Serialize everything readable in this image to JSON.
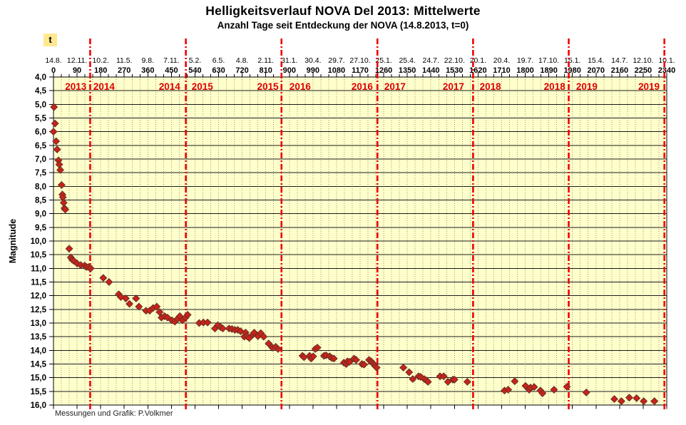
{
  "header": {
    "title": "Helligkeitsverlauf NOVA Del 2013: Mittelwerte",
    "subtitle": "Anzahl Tage seit Entdeckung der NOVA (14.8.2013, t=0)",
    "t_label": "t"
  },
  "footer": {
    "credit": "Messungen und Grafik: P.Volkmer"
  },
  "colors": {
    "page_bg": "#ffffff",
    "plot_bg": "#ffffcc",
    "h_grid": "#1c1c1c",
    "v_grid": "#9b9b73",
    "border": "#000000",
    "point_fill": "#cc2118",
    "point_stroke": "#6e3125",
    "year_line": "#f00000",
    "year_text": "#e00000",
    "t_box_bg": "#ffe98f",
    "axis_text": "#000000",
    "footer_text": "#1f1f1f"
  },
  "chart_data": {
    "type": "scatter",
    "title": "Helligkeitsverlauf NOVA Del 2013: Mittelwerte",
    "xlabel": "Anzahl Tage seit Entdeckung der NOVA (14.8.2013, t=0)",
    "ylabel": "Magnitude",
    "legend": "none",
    "grid": "on",
    "x_axis": {
      "min": 0,
      "max": 2340,
      "tick_step": 90,
      "minor_step": 30,
      "unit_label": "t",
      "tick_days": [
        0,
        90,
        180,
        270,
        360,
        450,
        540,
        630,
        720,
        810,
        900,
        990,
        1080,
        1170,
        1260,
        1350,
        1440,
        1530,
        1620,
        1710,
        1800,
        1890,
        1980,
        2070,
        2160,
        2250,
        2340
      ],
      "tick_dates": [
        "14.8.",
        "12.11.",
        "10.2.",
        "11.5.",
        "9.8.",
        "7.11.",
        "5.2.",
        "6.5.",
        "4.8.",
        "2.11.",
        "31.1.",
        "30.4.",
        "29.7.",
        "27.10.",
        "25.1.",
        "25.4.",
        "24.7.",
        "22.10.",
        "20.1.",
        "20.4.",
        "19.7.",
        "17.10.",
        "15.1.",
        "15.4.",
        "14.7.",
        "12.10.",
        "10.1."
      ]
    },
    "y_axis": {
      "min": 4.0,
      "max": 16.0,
      "step": 0.5,
      "inverted": true,
      "tick_labels": [
        "4,0",
        "4,5",
        "5,0",
        "5,5",
        "6,0",
        "6,5",
        "7,0",
        "7,5",
        "8,0",
        "8,5",
        "9,0",
        "9,5",
        "10,0",
        "10,5",
        "11,0",
        "11,5",
        "12,0",
        "12,5",
        "13,0",
        "13,5",
        "14,0",
        "14,5",
        "15,0",
        "15,5",
        "16,0"
      ]
    },
    "year_lines": {
      "days": [
        140,
        505,
        870,
        1236,
        1601,
        1966,
        2331
      ]
    },
    "year_labels": [
      {
        "text": "2013",
        "day": 85
      },
      {
        "text": "2014",
        "day": 193
      },
      {
        "text": "2014",
        "day": 443
      },
      {
        "text": "2015",
        "day": 568
      },
      {
        "text": "2015",
        "day": 818
      },
      {
        "text": "2016",
        "day": 941
      },
      {
        "text": "2016",
        "day": 1178
      },
      {
        "text": "2017",
        "day": 1303
      },
      {
        "text": "2017",
        "day": 1526
      },
      {
        "text": "2018",
        "day": 1667
      },
      {
        "text": "2018",
        "day": 1912
      },
      {
        "text": "2019",
        "day": 2035
      },
      {
        "text": "2019",
        "day": 2272
      }
    ],
    "points": [
      [
        0,
        6.0
      ],
      [
        2,
        5.1
      ],
      [
        6,
        5.7
      ],
      [
        10,
        6.35
      ],
      [
        14,
        6.65
      ],
      [
        19,
        7.05
      ],
      [
        22,
        7.2
      ],
      [
        26,
        7.4
      ],
      [
        31,
        7.95
      ],
      [
        34,
        8.3
      ],
      [
        36,
        8.4
      ],
      [
        39,
        8.6
      ],
      [
        42,
        8.8
      ],
      [
        45,
        8.85
      ],
      [
        60,
        10.28
      ],
      [
        66,
        10.6
      ],
      [
        71,
        10.68
      ],
      [
        77,
        10.72
      ],
      [
        90,
        10.82
      ],
      [
        104,
        10.88
      ],
      [
        119,
        10.9
      ],
      [
        126,
        10.95
      ],
      [
        134,
        10.95
      ],
      [
        142,
        11.0
      ],
      [
        190,
        11.35
      ],
      [
        212,
        11.5
      ],
      [
        249,
        11.95
      ],
      [
        257,
        12.05
      ],
      [
        276,
        12.1
      ],
      [
        290,
        12.3
      ],
      [
        315,
        12.1
      ],
      [
        326,
        12.4
      ],
      [
        353,
        12.55
      ],
      [
        367,
        12.55
      ],
      [
        380,
        12.45
      ],
      [
        394,
        12.4
      ],
      [
        405,
        12.6
      ],
      [
        412,
        12.8
      ],
      [
        424,
        12.75
      ],
      [
        435,
        12.8
      ],
      [
        452,
        12.9
      ],
      [
        463,
        12.95
      ],
      [
        473,
        12.85
      ],
      [
        482,
        12.75
      ],
      [
        492,
        12.9
      ],
      [
        504,
        12.8
      ],
      [
        512,
        12.7
      ],
      [
        556,
        13.0
      ],
      [
        572,
        12.98
      ],
      [
        588,
        12.98
      ],
      [
        616,
        13.2
      ],
      [
        627,
        13.08
      ],
      [
        638,
        13.15
      ],
      [
        646,
        13.2
      ],
      [
        670,
        13.2
      ],
      [
        681,
        13.22
      ],
      [
        692,
        13.25
      ],
      [
        703,
        13.25
      ],
      [
        714,
        13.3
      ],
      [
        728,
        13.5
      ],
      [
        733,
        13.35
      ],
      [
        738,
        13.48
      ],
      [
        747,
        13.55
      ],
      [
        761,
        13.42
      ],
      [
        766,
        13.35
      ],
      [
        780,
        13.48
      ],
      [
        791,
        13.37
      ],
      [
        802,
        13.5
      ],
      [
        821,
        13.75
      ],
      [
        835,
        13.9
      ],
      [
        848,
        13.87
      ],
      [
        857,
        13.95
      ],
      [
        950,
        14.2
      ],
      [
        956,
        14.25
      ],
      [
        977,
        14.2
      ],
      [
        983,
        14.3
      ],
      [
        991,
        14.22
      ],
      [
        999,
        13.95
      ],
      [
        1007,
        13.9
      ],
      [
        1032,
        14.2
      ],
      [
        1040,
        14.18
      ],
      [
        1054,
        14.22
      ],
      [
        1062,
        14.28
      ],
      [
        1070,
        14.3
      ],
      [
        1108,
        14.45
      ],
      [
        1117,
        14.5
      ],
      [
        1122,
        14.4
      ],
      [
        1130,
        14.42
      ],
      [
        1147,
        14.3
      ],
      [
        1155,
        14.35
      ],
      [
        1177,
        14.5
      ],
      [
        1185,
        14.52
      ],
      [
        1204,
        14.35
      ],
      [
        1212,
        14.4
      ],
      [
        1218,
        14.47
      ],
      [
        1223,
        14.52
      ],
      [
        1228,
        14.58
      ],
      [
        1233,
        14.63
      ],
      [
        1335,
        14.63
      ],
      [
        1357,
        14.8
      ],
      [
        1371,
        15.05
      ],
      [
        1393,
        14.95
      ],
      [
        1401,
        14.97
      ],
      [
        1415,
        15.05
      ],
      [
        1423,
        15.1
      ],
      [
        1429,
        15.15
      ],
      [
        1475,
        14.95
      ],
      [
        1489,
        14.95
      ],
      [
        1505,
        15.15
      ],
      [
        1524,
        15.07
      ],
      [
        1530,
        15.07
      ],
      [
        1579,
        15.15
      ],
      [
        1721,
        15.47
      ],
      [
        1735,
        15.44
      ],
      [
        1760,
        15.13
      ],
      [
        1801,
        15.3
      ],
      [
        1815,
        15.44
      ],
      [
        1820,
        15.36
      ],
      [
        1834,
        15.34
      ],
      [
        1858,
        15.47
      ],
      [
        1866,
        15.57
      ],
      [
        1910,
        15.44
      ],
      [
        1959,
        15.33
      ],
      [
        2033,
        15.54
      ],
      [
        2140,
        15.78
      ],
      [
        2167,
        15.86
      ],
      [
        2197,
        15.73
      ],
      [
        2225,
        15.75
      ],
      [
        2252,
        15.86
      ],
      [
        2293,
        15.86
      ]
    ]
  }
}
